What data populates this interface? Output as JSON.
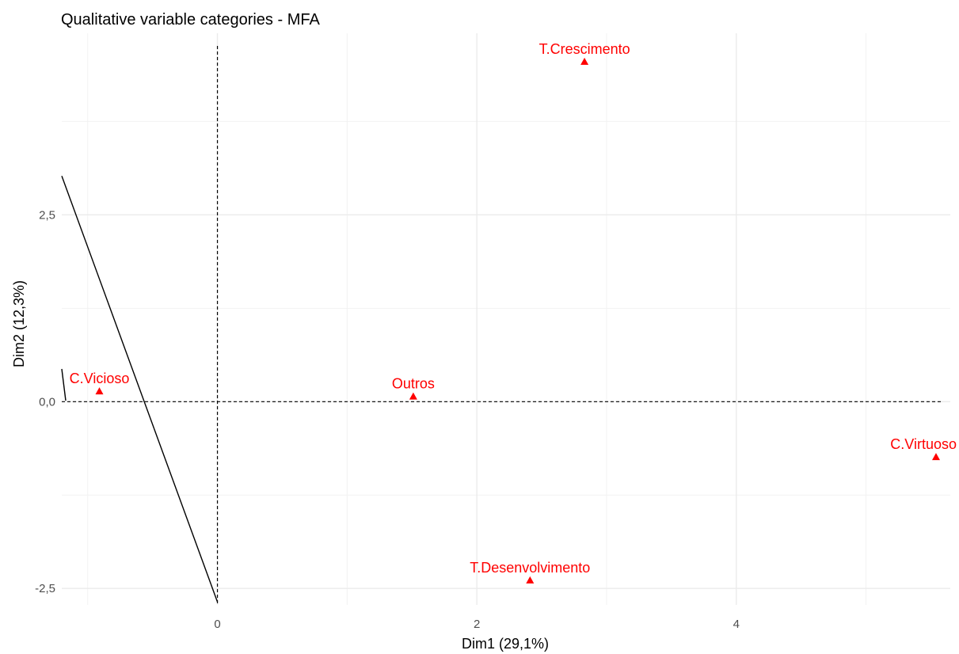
{
  "chart_data": {
    "type": "scatter",
    "title": "Qualitative variable categories - MFA",
    "xlabel": "Dim1 (29,1%)",
    "ylabel": "Dim2 (12,3%)",
    "xlim": [
      -1.2,
      5.65
    ],
    "ylim": [
      -2.72,
      4.93
    ],
    "x_ticks": [
      {
        "value": 0,
        "label": "0"
      },
      {
        "value": 2,
        "label": "2"
      },
      {
        "value": 4,
        "label": "4"
      }
    ],
    "y_ticks": [
      {
        "value": -2.5,
        "label": "-2,5"
      },
      {
        "value": 0,
        "label": "0,0"
      },
      {
        "value": 2.5,
        "label": "2,5"
      }
    ],
    "grid": true,
    "marker": "triangle",
    "point_color": "#ff0000",
    "reference_lines": {
      "x": 0,
      "y": 0,
      "style": "dashed"
    },
    "boundary_line": [
      [
        -1.2,
        3.02
      ],
      [
        0,
        -2.68
      ]
    ],
    "points": [
      {
        "label": "T.Crescimento",
        "x": 2.83,
        "y": 4.55
      },
      {
        "label": "C.Vicioso",
        "x": -0.91,
        "y": 0.14
      },
      {
        "label": "Outros",
        "x": 1.51,
        "y": 0.07
      },
      {
        "label": "C.Virtuoso",
        "x": 5.54,
        "y": -0.74
      },
      {
        "label": "T.Desenvolvimento",
        "x": 2.41,
        "y": -2.39
      }
    ]
  }
}
